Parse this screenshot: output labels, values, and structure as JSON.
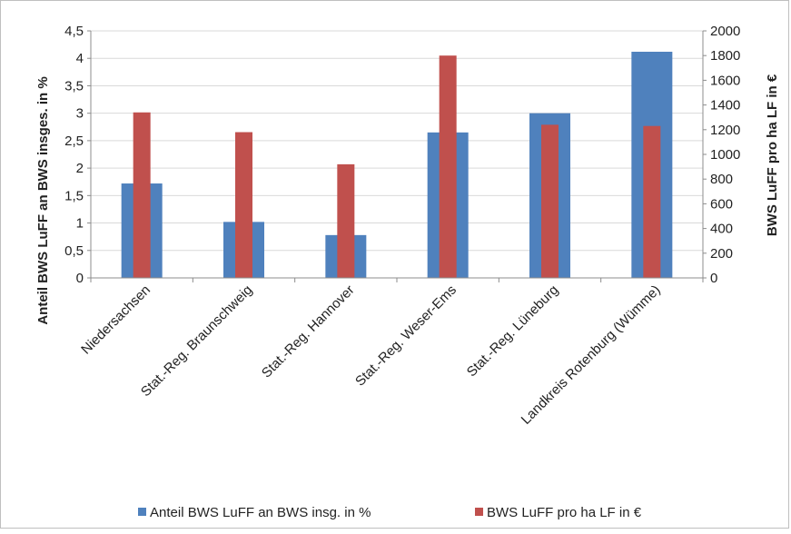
{
  "chart_data": {
    "type": "bar",
    "categories": [
      "Niedersachsen",
      "Stat.-Reg. Braunschweig",
      "Stat.-Reg. Hannover",
      "Stat.-Reg. Weser-Ems",
      "Stat.-Reg. Lüneburg",
      "Landkreis Rotenburg (Wümme)"
    ],
    "series": [
      {
        "name": "Anteil BWS LuFF an BWS insg. in %",
        "axis": "left",
        "color": "#4f81bd",
        "values": [
          1.72,
          1.02,
          0.78,
          2.65,
          3.0,
          4.12
        ]
      },
      {
        "name": "BWS LuFF pro ha LF in €",
        "axis": "right",
        "color": "#c0504d",
        "values": [
          1340,
          1180,
          920,
          1800,
          1240,
          1230
        ]
      }
    ],
    "ylabel": "Anteil BWS LuFF an BWS insges. in %",
    "ylabel_right": "BWS LuFF pro ha LF in €",
    "ylim": [
      0,
      4.5
    ],
    "ylim_right": [
      0,
      2000
    ],
    "y_ticks": [
      "0",
      "0,5",
      "1",
      "1,5",
      "2",
      "2,5",
      "3",
      "3,5",
      "4",
      "4,5"
    ],
    "y_ticks_right": [
      "0",
      "200",
      "400",
      "600",
      "800",
      "1000",
      "1200",
      "1400",
      "1600",
      "1800",
      "2000"
    ],
    "grid": true,
    "legend_position": "bottom"
  }
}
